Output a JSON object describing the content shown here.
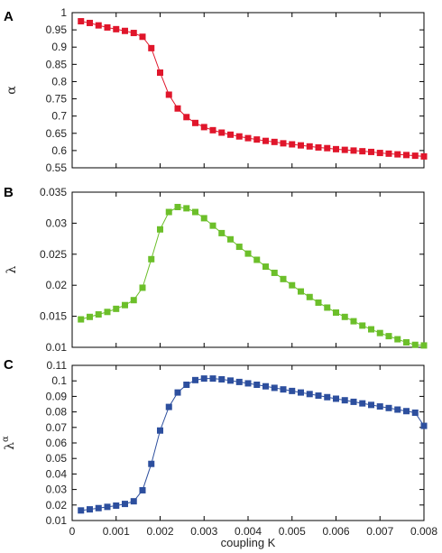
{
  "chart_data": [
    {
      "type": "line",
      "panel_label": "A",
      "ylabel": "α",
      "xlabel": "",
      "xlim": [
        0,
        0.008
      ],
      "ylim": [
        0.55,
        1
      ],
      "yticks": [
        "0.55",
        "0.6",
        "0.65",
        "0.7",
        "0.75",
        "0.8",
        "0.85",
        "0.9",
        "0.95",
        "1"
      ],
      "color": "#e0162b",
      "marker": "square",
      "x": [
        0.0002,
        0.0004,
        0.0006,
        0.0008,
        0.001,
        0.0012,
        0.0014,
        0.0016,
        0.0018,
        0.002,
        0.0022,
        0.0024,
        0.0026,
        0.0028,
        0.003,
        0.0032,
        0.0034,
        0.0036,
        0.0038,
        0.004,
        0.0042,
        0.0044,
        0.0046,
        0.0048,
        0.005,
        0.0052,
        0.0054,
        0.0056,
        0.0058,
        0.006,
        0.0062,
        0.0064,
        0.0066,
        0.0068,
        0.007,
        0.0072,
        0.0074,
        0.0076,
        0.0078,
        0.008
      ],
      "y": [
        0.975,
        0.97,
        0.963,
        0.957,
        0.952,
        0.947,
        0.941,
        0.93,
        0.897,
        0.826,
        0.762,
        0.722,
        0.697,
        0.68,
        0.668,
        0.659,
        0.652,
        0.646,
        0.641,
        0.636,
        0.632,
        0.628,
        0.625,
        0.621,
        0.618,
        0.615,
        0.612,
        0.609,
        0.607,
        0.604,
        0.602,
        0.6,
        0.598,
        0.596,
        0.593,
        0.591,
        0.589,
        0.587,
        0.585,
        0.583
      ]
    },
    {
      "type": "line",
      "panel_label": "B",
      "ylabel": "λ",
      "xlabel": "",
      "xlim": [
        0,
        0.008
      ],
      "ylim": [
        0.01,
        0.035
      ],
      "yticks": [
        "0.01",
        "0.015",
        "0.02",
        "0.025",
        "0.03",
        "0.035"
      ],
      "color": "#6cbf2a",
      "marker": "square",
      "x": [
        0.0002,
        0.0004,
        0.0006,
        0.0008,
        0.001,
        0.0012,
        0.0014,
        0.0016,
        0.0018,
        0.002,
        0.0022,
        0.0024,
        0.0026,
        0.0028,
        0.003,
        0.0032,
        0.0034,
        0.0036,
        0.0038,
        0.004,
        0.0042,
        0.0044,
        0.0046,
        0.0048,
        0.005,
        0.0052,
        0.0054,
        0.0056,
        0.0058,
        0.006,
        0.0062,
        0.0064,
        0.0066,
        0.0068,
        0.007,
        0.0072,
        0.0074,
        0.0076,
        0.0078,
        0.008
      ],
      "y": [
        0.0145,
        0.0149,
        0.0153,
        0.0157,
        0.0162,
        0.0168,
        0.0176,
        0.0196,
        0.0242,
        0.029,
        0.0318,
        0.0326,
        0.0324,
        0.0318,
        0.0308,
        0.0296,
        0.0284,
        0.0274,
        0.0262,
        0.0251,
        0.0241,
        0.023,
        0.022,
        0.021,
        0.02,
        0.019,
        0.0181,
        0.0172,
        0.0164,
        0.0156,
        0.0149,
        0.0142,
        0.0135,
        0.0129,
        0.0123,
        0.0118,
        0.0113,
        0.0108,
        0.0104,
        0.0103
      ]
    },
    {
      "type": "line",
      "panel_label": "C",
      "ylabel": "λ^α",
      "ylabel_base": "λ",
      "ylabel_exp": "α",
      "xlabel": "coupling K",
      "xlim": [
        0,
        0.008
      ],
      "ylim": [
        0.01,
        0.11
      ],
      "yticks": [
        "0.01",
        "0.02",
        "0.03",
        "0.04",
        "0.05",
        "0.06",
        "0.07",
        "0.08",
        "0.09",
        "0.1",
        "0.11"
      ],
      "xticks": [
        "0",
        "0.001",
        "0.002",
        "0.003",
        "0.004",
        "0.005",
        "0.006",
        "0.007",
        "0.008"
      ],
      "color": "#2d4f9e",
      "marker": "square",
      "x": [
        0.0002,
        0.0004,
        0.0006,
        0.0008,
        0.001,
        0.0012,
        0.0014,
        0.0016,
        0.0018,
        0.002,
        0.0022,
        0.0024,
        0.0026,
        0.0028,
        0.003,
        0.0032,
        0.0034,
        0.0036,
        0.0038,
        0.004,
        0.0042,
        0.0044,
        0.0046,
        0.0048,
        0.005,
        0.0052,
        0.0054,
        0.0056,
        0.0058,
        0.006,
        0.0062,
        0.0064,
        0.0066,
        0.0068,
        0.007,
        0.0072,
        0.0074,
        0.0076,
        0.0078,
        0.008
      ],
      "y": [
        0.0165,
        0.0172,
        0.018,
        0.0188,
        0.0196,
        0.0207,
        0.0224,
        0.0295,
        0.0465,
        0.068,
        0.0832,
        0.0925,
        0.0975,
        0.1005,
        0.1015,
        0.1015,
        0.101,
        0.1002,
        0.0993,
        0.0984,
        0.0975,
        0.0965,
        0.0955,
        0.0945,
        0.0935,
        0.0925,
        0.0915,
        0.0905,
        0.0895,
        0.0885,
        0.0875,
        0.0865,
        0.0855,
        0.0845,
        0.0835,
        0.0825,
        0.0815,
        0.0805,
        0.0795,
        0.071
      ]
    }
  ]
}
